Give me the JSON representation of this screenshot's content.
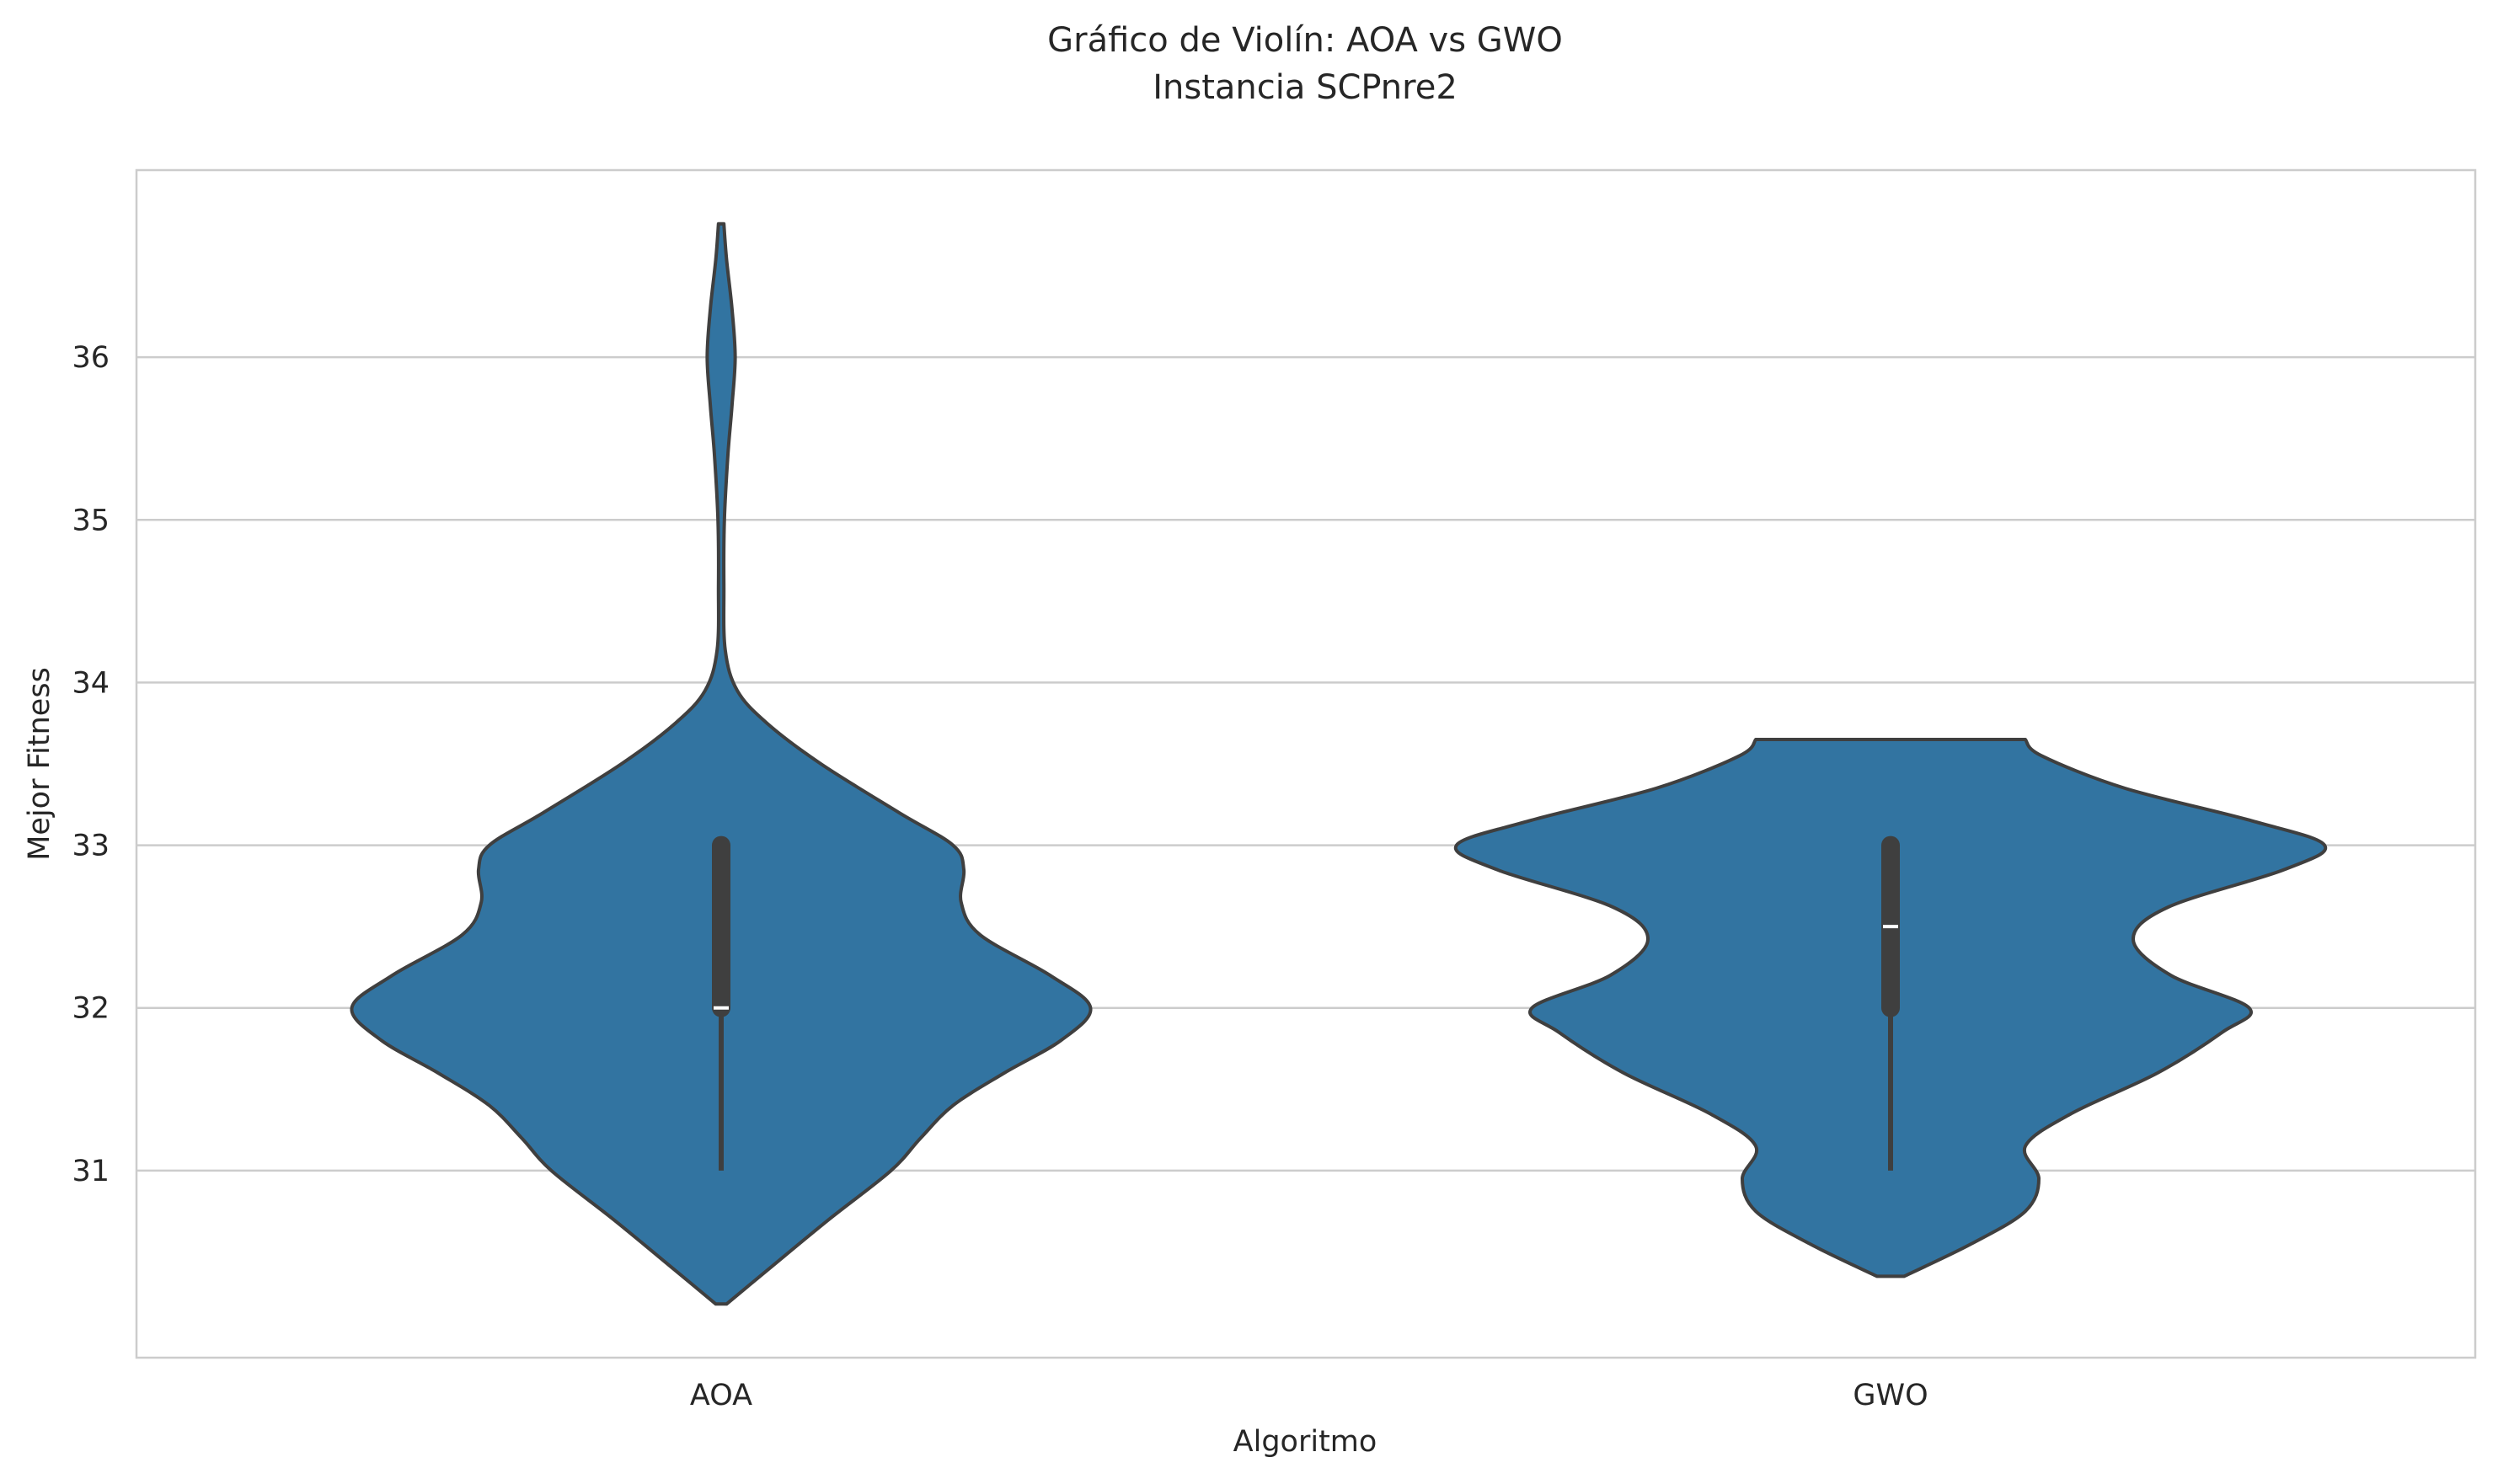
{
  "chart_data": {
    "type": "violin",
    "title": "Gráfico de Violín: AOA vs GWO",
    "subtitle": "Instancia SCPnre2",
    "xlabel": "Algoritmo",
    "ylabel": "Mejor Fitness",
    "categories": [
      "AOA",
      "GWO"
    ],
    "ylim": [
      29.85,
      37.15
    ],
    "yticks": [
      31,
      32,
      33,
      34,
      35,
      36
    ],
    "grid": "horizontal",
    "color": "#3274a1",
    "edge_color": "#3f3f3f",
    "violins": [
      {
        "category": "AOA",
        "median": 32,
        "q1": 32,
        "q3": 33,
        "whisker_low": 31,
        "whisker_high": 33,
        "ymin": 30.18,
        "ymax": 36.82,
        "profile": [
          [
            30.18,
            0.02
          ],
          [
            30.4,
            0.18
          ],
          [
            30.7,
            0.4
          ],
          [
            31.0,
            0.63
          ],
          [
            31.2,
            0.74
          ],
          [
            31.4,
            0.86
          ],
          [
            31.6,
            1.05
          ],
          [
            31.8,
            1.26
          ],
          [
            32.0,
            1.37
          ],
          [
            32.2,
            1.22
          ],
          [
            32.45,
            0.96
          ],
          [
            32.65,
            0.89
          ],
          [
            32.85,
            0.9
          ],
          [
            33.0,
            0.86
          ],
          [
            33.2,
            0.66
          ],
          [
            33.5,
            0.37
          ],
          [
            33.75,
            0.17
          ],
          [
            33.95,
            0.06
          ],
          [
            34.2,
            0.015
          ],
          [
            34.6,
            0.01
          ],
          [
            35.0,
            0.012
          ],
          [
            35.4,
            0.025
          ],
          [
            35.7,
            0.04
          ],
          [
            36.0,
            0.052
          ],
          [
            36.3,
            0.04
          ],
          [
            36.6,
            0.02
          ],
          [
            36.82,
            0.01
          ]
        ]
      },
      {
        "category": "GWO",
        "median": 32.5,
        "q1": 32,
        "q3": 33,
        "whisker_low": 31,
        "whisker_high": 33,
        "ymin": 30.35,
        "ymax": 33.65,
        "profile": [
          [
            30.35,
            0.05
          ],
          [
            30.55,
            0.3
          ],
          [
            30.75,
            0.5
          ],
          [
            30.95,
            0.55
          ],
          [
            31.15,
            0.5
          ],
          [
            31.35,
            0.67
          ],
          [
            31.6,
            0.99
          ],
          [
            31.85,
            1.23
          ],
          [
            32.0,
            1.33
          ],
          [
            32.2,
            1.04
          ],
          [
            32.42,
            0.9
          ],
          [
            32.62,
            1.03
          ],
          [
            32.85,
            1.46
          ],
          [
            33.0,
            1.61
          ],
          [
            33.15,
            1.34
          ],
          [
            33.35,
            0.87
          ],
          [
            33.55,
            0.56
          ],
          [
            33.65,
            0.5
          ]
        ]
      }
    ]
  }
}
